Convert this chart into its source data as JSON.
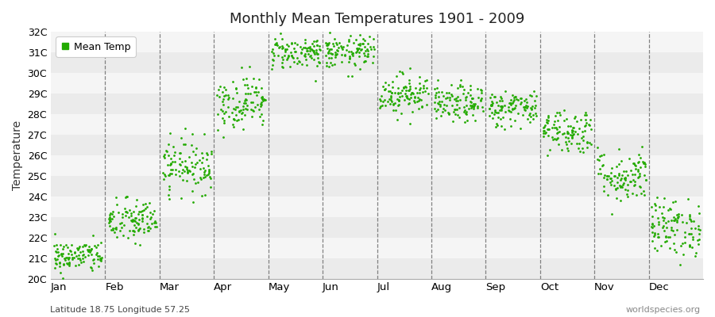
{
  "title": "Monthly Mean Temperatures 1901 - 2009",
  "ylabel": "Temperature",
  "xlabel_bottom_left": "Latitude 18.75 Longitude 57.25",
  "xlabel_bottom_right": "worldspecies.org",
  "legend_label": "Mean Temp",
  "dot_color": "#22aa00",
  "band_color_odd": "#ebebeb",
  "band_color_even": "#f5f5f5",
  "ylim": [
    20.0,
    32.0
  ],
  "ytick_labels": [
    "20C",
    "21C",
    "22C",
    "23C",
    "24C",
    "25C",
    "26C",
    "27C",
    "28C",
    "29C",
    "30C",
    "31C",
    "32C"
  ],
  "ytick_values": [
    20,
    21,
    22,
    23,
    24,
    25,
    26,
    27,
    28,
    29,
    30,
    31,
    32
  ],
  "months": [
    "Jan",
    "Feb",
    "Mar",
    "Apr",
    "May",
    "Jun",
    "Jul",
    "Aug",
    "Sep",
    "Oct",
    "Nov",
    "Dec"
  ],
  "month_means": [
    21.1,
    22.8,
    25.5,
    28.6,
    31.0,
    31.0,
    29.0,
    28.5,
    28.3,
    27.2,
    25.0,
    22.5
  ],
  "month_stds": [
    0.4,
    0.55,
    0.65,
    0.65,
    0.4,
    0.4,
    0.5,
    0.45,
    0.45,
    0.55,
    0.65,
    0.7
  ],
  "n_years": 109,
  "seed": 42
}
